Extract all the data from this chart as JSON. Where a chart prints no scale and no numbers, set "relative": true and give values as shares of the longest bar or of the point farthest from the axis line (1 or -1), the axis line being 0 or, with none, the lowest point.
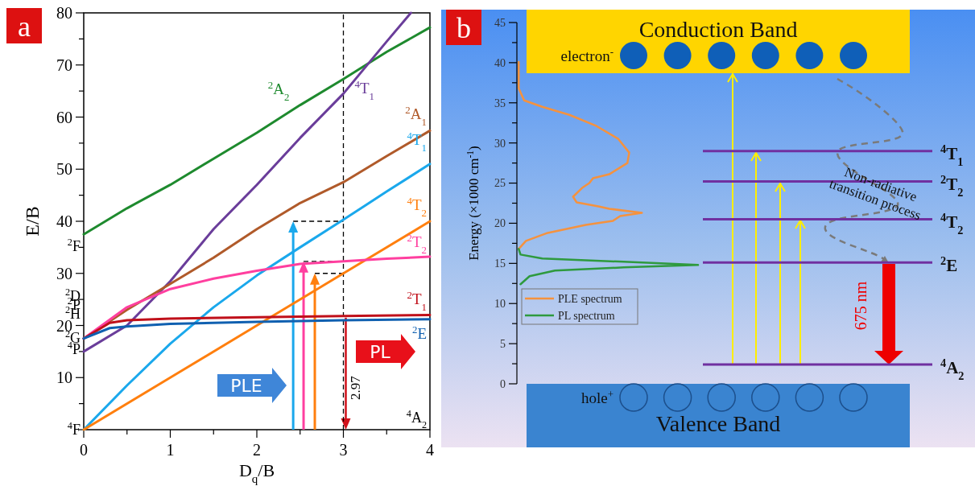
{
  "chart_data": [
    {
      "type": "line",
      "title": "a",
      "xlabel": "D$_{q}$/B",
      "ylabel": "E/B",
      "xlim": [
        0,
        4
      ],
      "ylim": [
        0,
        80
      ],
      "xticks": [
        0,
        {
          "value": 0.5,
          "label": null
        },
        1,
        {
          "value": 1.5,
          "label": null
        },
        2,
        {
          "value": 2.5,
          "label": null
        },
        3,
        {
          "value": 3.5,
          "label": null
        },
        4
      ],
      "yticks": [
        {
          "value": 0,
          "label": null
        },
        {
          "value": 5,
          "label": null
        },
        10,
        {
          "value": 15,
          "label": null
        },
        20,
        {
          "value": 25,
          "label": null
        },
        30,
        {
          "value": 35,
          "label": null
        },
        40,
        {
          "value": 45,
          "label": null
        },
        50,
        {
          "value": 55,
          "label": null
        },
        60,
        {
          "value": 65,
          "label": null
        },
        70,
        {
          "value": 75,
          "label": null
        },
        80
      ],
      "grid": false,
      "legend": false,
      "marker": "none",
      "line_style": "solid",
      "series": [
        {
          "name": "$^{2}$A$_{2}$",
          "color": "#1e8a2e",
          "x": [
            0,
            0.5,
            1,
            1.5,
            2,
            2.5,
            3,
            3.5,
            4
          ],
          "values": [
            37.5,
            42.5,
            47,
            52,
            57,
            62.3,
            67.3,
            72.5,
            77.2
          ]
        },
        {
          "name": "$^{4}$T$_{1}$",
          "color": "#6a3d9a",
          "x": [
            0,
            0.5,
            1,
            1.5,
            2,
            2.5,
            3,
            3.5,
            3.78
          ],
          "values": [
            15,
            20,
            28.5,
            38.5,
            47,
            56,
            64.5,
            74.5,
            80
          ]
        },
        {
          "name": "$^{2}$A$_{1}$",
          "color": "#b05a2a",
          "x": [
            0,
            0.5,
            1,
            1.5,
            2,
            2.5,
            3,
            3.5,
            4
          ],
          "values": [
            17.5,
            23,
            28,
            33,
            38.5,
            43.5,
            47.5,
            52.5,
            57.4
          ]
        },
        {
          "name": "$^{4}$T$_{1}$",
          "color": "#1aa8ec",
          "x": [
            0,
            0.5,
            1,
            1.5,
            2,
            2.5,
            3,
            3.5,
            4
          ],
          "values": [
            0,
            8.5,
            16.5,
            23.5,
            29.6,
            35,
            40.3,
            45.7,
            51
          ]
        },
        {
          "name": "$^{4}$T$_{2}$",
          "color": "#ff7f0e",
          "x": [
            0,
            1,
            2,
            3,
            4
          ],
          "values": [
            0,
            10,
            20,
            30,
            40
          ]
        },
        {
          "name": "$^{2}$T$_{2}$",
          "color": "#ff3f9f",
          "x": [
            0,
            0.5,
            1,
            1.5,
            2,
            2.5,
            3,
            3.5,
            4
          ],
          "values": [
            17.5,
            23.5,
            27,
            29,
            30.5,
            31.8,
            32.3,
            32.8,
            33.2
          ]
        },
        {
          "name": "$^{2}$T$_{1}$",
          "color": "#c0101a",
          "x": [
            0,
            0.3,
            0.5,
            1,
            2,
            3,
            4
          ],
          "values": [
            17.5,
            20.5,
            21,
            21.3,
            21.6,
            21.8,
            22
          ]
        },
        {
          "name": "$^{2}$E",
          "color": "#1060b0",
          "x": [
            0,
            0.3,
            0.5,
            1,
            2,
            3,
            4
          ],
          "values": [
            17.5,
            19.5,
            19.8,
            20.3,
            20.7,
            21,
            21.2
          ]
        }
      ],
      "ref_lines": [
        {
          "axis": "x",
          "value": 3,
          "line_style": "dashed",
          "color": "#000000"
        }
      ],
      "annotations": [
        "$^{2}$F",
        "$^{2}$D",
        "$^{2}$P",
        "$^{2}$H",
        "$^{2}$G",
        "$^{4}$P",
        "$^{4}$F",
        {
          "text": "2.97",
          "x": 3,
          "y": 8
        },
        "$^{4}$A$_{2}$",
        "PLE",
        "PL"
      ]
    },
    {
      "type": "line",
      "title": "b",
      "orientation": "horizontal",
      "relative": true,
      "ylabel": "Energy (×1000 cm$^{-1}$)",
      "ylim": [
        0,
        45
      ],
      "yticks": [
        0,
        {
          "value": 2.5,
          "label": null
        },
        5,
        {
          "value": 7.5,
          "label": null
        },
        10,
        {
          "value": 12.5,
          "label": null
        },
        15,
        {
          "value": 17.5,
          "label": null
        },
        20,
        {
          "value": 22.5,
          "label": null
        },
        25,
        {
          "value": 27.5,
          "label": null
        },
        30,
        {
          "value": 32.5,
          "label": null
        },
        35,
        {
          "value": 37.5,
          "label": null
        },
        40,
        {
          "value": 42.5,
          "label": null
        },
        45
      ],
      "legend": "left",
      "series": [
        {
          "name": "PLE spectrum",
          "color": "#f5923e",
          "x": [
            40.1,
            36.8,
            35.3,
            34.5,
            33.5,
            32.1,
            30.5,
            28.8,
            27.5,
            26.1,
            25.6,
            25,
            24.4,
            23.3,
            22.6,
            22.1,
            21.8,
            21.3,
            20.9,
            20.3,
            19.8,
            18.8,
            17.8,
            16.8
          ],
          "values": [
            0.01,
            0.01,
            0.04,
            0.14,
            0.29,
            0.44,
            0.56,
            0.62,
            0.61,
            0.51,
            0.42,
            0.4,
            0.36,
            0.31,
            0.33,
            0.45,
            0.51,
            0.69,
            0.57,
            0.53,
            0.38,
            0.17,
            0.05,
            0.01
          ]
        },
        {
          "name": "PL spectrum",
          "color": "#2e9a3e",
          "x": [
            16.8,
            16.1,
            15.6,
            15.2,
            14.8,
            14.5,
            14.1,
            13.4,
            12.4
          ],
          "values": [
            0.01,
            0.02,
            0.14,
            0.59,
            1,
            0.59,
            0.21,
            0.07,
            0.02
          ]
        }
      ],
      "ref_lines": [
        {
          "axis": "y",
          "value": 29,
          "label": "$^{4}$T$_{1}$",
          "color": "#7030a0"
        },
        {
          "axis": "y",
          "value": 25.2,
          "label": "$^{2}$T$_{2}$",
          "color": "#7030a0"
        },
        {
          "axis": "y",
          "value": 20.5,
          "label": "$^{4}$T$_{2}$",
          "color": "#7030a0"
        },
        {
          "axis": "y",
          "value": 15.1,
          "label": "$^{2}$E",
          "color": "#7030a0"
        },
        {
          "axis": "y",
          "value": 2.4,
          "label": "$^{4}$A$_{2}$",
          "color": "#7030a0"
        }
      ],
      "annotations": [
        "Conduction Band",
        "electron$^{-}$",
        "hole$^{+}$",
        "Valence Band",
        "Non-radiative transition process",
        "675 nm"
      ]
    }
  ]
}
